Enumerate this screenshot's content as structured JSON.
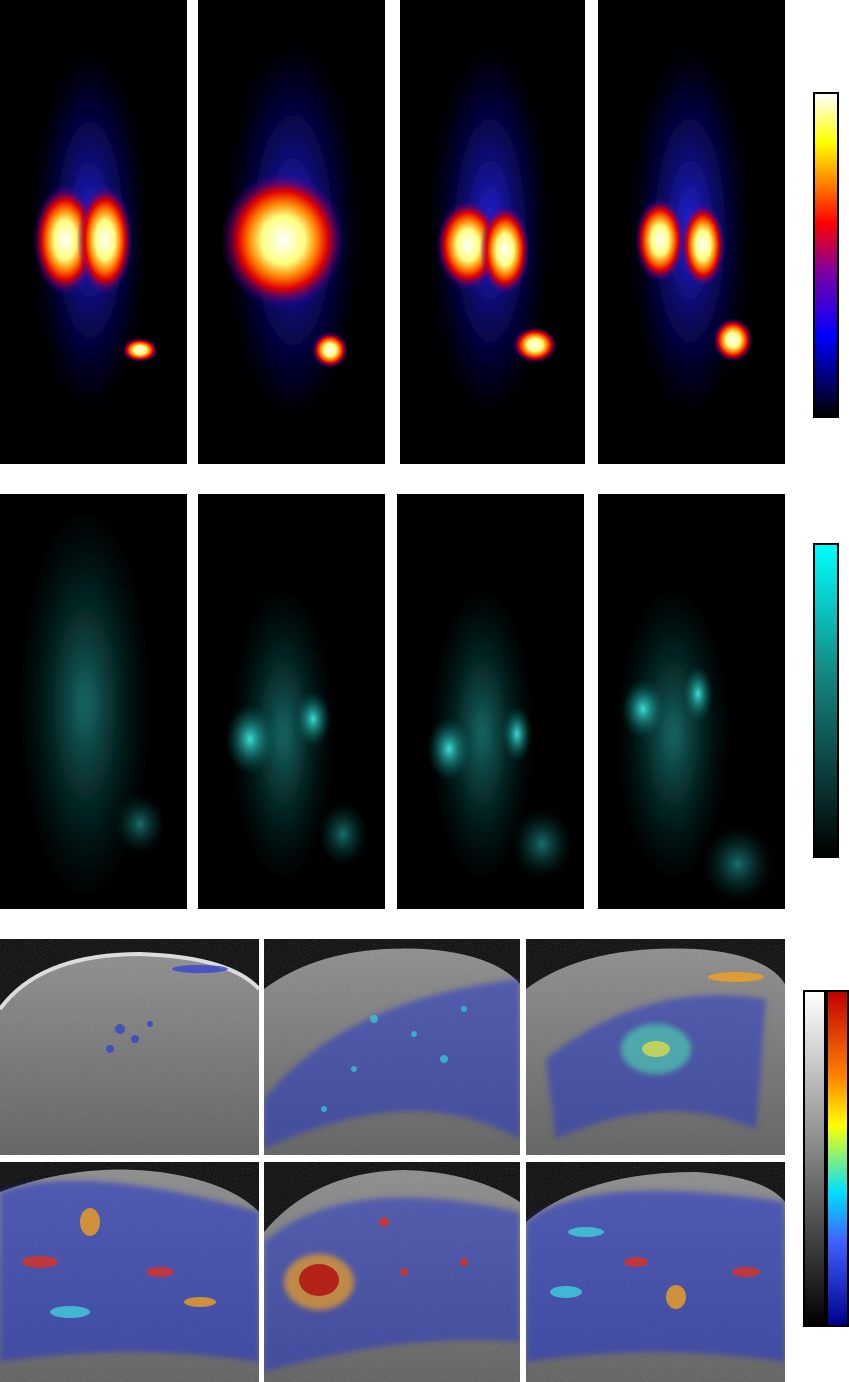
{
  "figure": {
    "rows": [
      {
        "modality": "pet",
        "panel_count": 4,
        "colormap": [
          "#000000",
          "#0000ff",
          "#8000a0",
          "#ff0000",
          "#ff8000",
          "#ffff00",
          "#ffffff"
        ]
      },
      {
        "modality": "fluorescence",
        "panel_count": 4,
        "colormap": [
          "#000000",
          "#00ffff"
        ]
      },
      {
        "modality": "ultrasound-doppler",
        "panel_count": 6,
        "grayscale_colormap": [
          "#000000",
          "#ffffff"
        ],
        "doppler_colormap": [
          "#00008b",
          "#4060ff",
          "#00e0ff",
          "#ffff00",
          "#ff8000",
          "#c00000"
        ]
      }
    ]
  }
}
